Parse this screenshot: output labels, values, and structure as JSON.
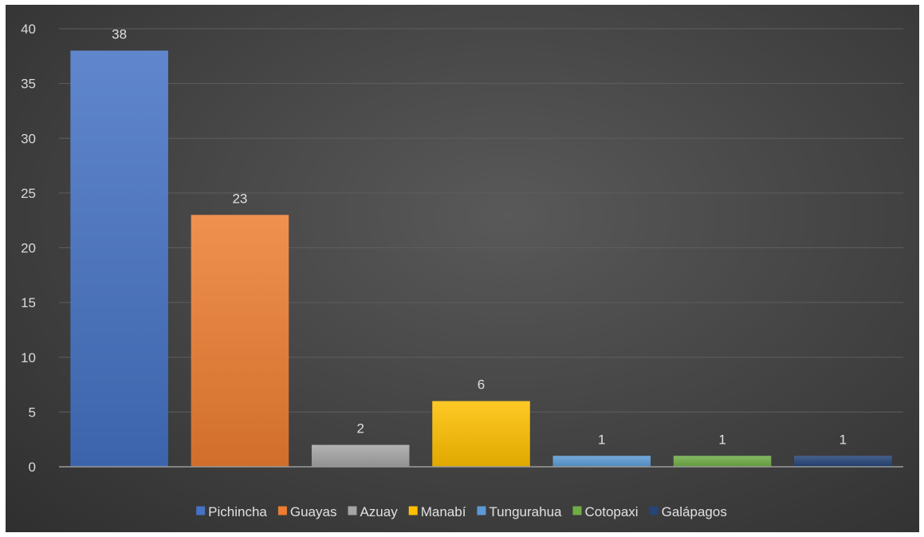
{
  "chart_data": {
    "type": "bar",
    "title": "",
    "xlabel": "",
    "ylabel": "",
    "categories": [
      "Pichincha",
      "Guayas",
      "Azuay",
      "Manabí",
      "Tungurahua",
      "Cotopaxi",
      "Galápagos"
    ],
    "values": [
      38,
      23,
      2,
      6,
      1,
      1,
      1
    ],
    "colors": [
      "#4472c4",
      "#ed7d31",
      "#a5a5a5",
      "#ffc000",
      "#5b9bd5",
      "#70ad47",
      "#264478"
    ],
    "ylim": [
      0,
      40
    ],
    "yticks": [
      0,
      5,
      10,
      15,
      20,
      25,
      30,
      35,
      40
    ],
    "grid": true,
    "data_labels": true,
    "legend": "bottom",
    "background": "#3f3f3f"
  }
}
